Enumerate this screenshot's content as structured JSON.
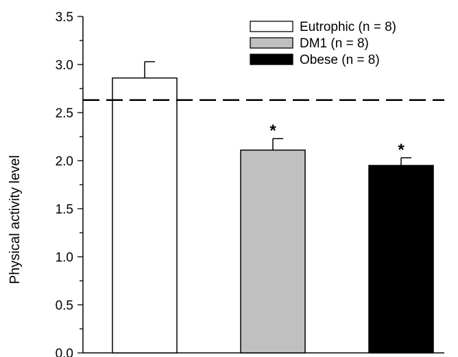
{
  "chart_data": {
    "type": "bar",
    "categories": [
      "Eutrophic (n = 8)",
      "DM1 (n = 8)",
      "Obese (n = 8)"
    ],
    "series": [
      {
        "name": "Physical activity level",
        "values": [
          2.86,
          2.11,
          1.95
        ],
        "error": [
          0.17,
          0.12,
          0.08
        ],
        "colors": [
          "#ffffff",
          "#c0c0c0",
          "#000000"
        ],
        "significance": [
          "",
          "*",
          "*"
        ]
      }
    ],
    "legend": {
      "placement": "top-right",
      "entries": [
        {
          "label": "Eutrophic (n = 8)",
          "color": "#ffffff"
        },
        {
          "label": "DM1 (n = 8)",
          "color": "#c0c0c0"
        },
        {
          "label": "Obese (n = 8)",
          "color": "#000000"
        }
      ]
    },
    "reference_line": {
      "y": 2.63,
      "style": "dashed"
    },
    "title": "",
    "xlabel": "",
    "ylabel": "Physical activity level",
    "ylim": [
      0.0,
      3.5
    ],
    "yticks": [
      "0.0",
      "0.5",
      "1.0",
      "1.5",
      "2.0",
      "2.5",
      "3.0",
      "3.5"
    ],
    "grid": false
  }
}
